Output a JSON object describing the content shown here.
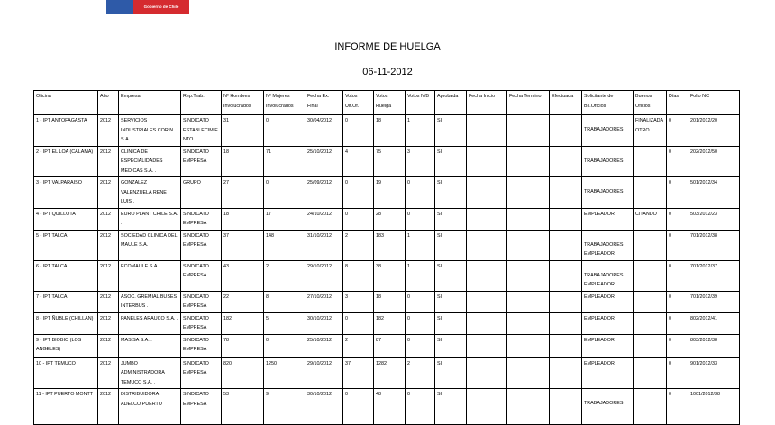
{
  "logo": {
    "text": "Gobierno de Chile"
  },
  "title": "INFORME DE HUELGA",
  "date": "06-11-2012",
  "columns": [
    "Oficina",
    "Año",
    "Empresa",
    "Rep.Trab.",
    "Nº Hombres Involucrados",
    "Nº Mujeres Involucrados",
    "Fecha Ex. Final",
    "Votos Ult.Of.",
    "Votos Huelga",
    "Votos N/B",
    "Aprobada",
    "Fecha Inicio",
    "Fecha Termino",
    "Efectuada",
    "Solicitante de Bs.Oficios",
    "Buenos Oficios",
    "Días",
    "Folio NC"
  ],
  "rows": [
    [
      "1 - IPT ANTOFAGASTA",
      "2012",
      "SERVICIOS INDUSTRIALES CORIN S.A. .",
      "SINDICATO ESTABLECIMIENTO",
      "31",
      "0",
      "30/04/2012",
      "0",
      "18",
      "1",
      "SI",
      "",
      "",
      "",
      "TRABAJADORES",
      "FINALIZADA OTRO",
      "0",
      "201/2012/20"
    ],
    [
      "2 - IPT EL LOA (CALAMA)",
      "2012",
      "CLINICA DE ESPECIALIDADES MEDICAS S.A. .",
      "SINDICATO EMPRESA",
      "18",
      "71",
      "25/10/2012",
      "4",
      "75",
      "3",
      "SI",
      "",
      "",
      "",
      "TRABAJADORES",
      "",
      "0",
      "202/2012/50"
    ],
    [
      "3 - IPT VALPARAISO",
      "2012",
      "GONZALEZ VALENZUELA RENE LUIS .",
      "GRUPO",
      "27",
      "0",
      "25/09/2012",
      "0",
      "19",
      "0",
      "SI",
      "",
      "",
      "",
      "TRABAJADORES",
      "",
      "0",
      "501/2012/34"
    ],
    [
      "4 - IPT QUILLOTA",
      "2012",
      "EURO PLANT CHILE S.A. .",
      "SINDICATO EMPRESA",
      "18",
      "17",
      "24/10/2012",
      "0",
      "28",
      "0",
      "SI",
      "",
      "",
      "",
      "EMPLEADOR",
      "CITANDO",
      "0",
      "503/2012/23"
    ],
    [
      "5 - IPT TALCA",
      "2012",
      "SOCIEDAD CLINICA DEL MAULE S.A. .",
      "SINDICATO EMPRESA",
      "37",
      "148",
      "31/10/2012",
      "2",
      "183",
      "1",
      "SI",
      "",
      "",
      "",
      "TRABAJADORES EMPLEADOR",
      "",
      "0",
      "701/2012/38"
    ],
    [
      "6 - IPT TALCA",
      "2012",
      "ECOMAULE S.A. .",
      "SINDICATO EMPRESA",
      "43",
      "2",
      "29/10/2012",
      "8",
      "38",
      "1",
      "SI",
      "",
      "",
      "",
      "TRABAJADORES EMPLEADOR",
      "",
      "0",
      "701/2012/37"
    ],
    [
      "7 - IPT TALCA",
      "2012",
      "ASOC. GREMIAL BUSES INTERBUS .",
      "SINDICATO EMPRESA",
      "22",
      "8",
      "27/10/2012",
      "3",
      "18",
      "0",
      "SI",
      "",
      "",
      "",
      "EMPLEADOR",
      "",
      "0",
      "701/2012/39"
    ],
    [
      "8 - IPT ÑUBLE (CHILLAN)",
      "2012",
      "PANELES ARAUCO S.A. .",
      "SINDICATO EMPRESA",
      "182",
      "5",
      "30/10/2012",
      "0",
      "182",
      "0",
      "SI",
      "",
      "",
      "",
      "EMPLEADOR",
      "",
      "0",
      "802/2012/41"
    ],
    [
      "9 - IPT BIOBIO (LOS ANGELES)",
      "2012",
      "MASISA S.A. .",
      "SINDICATO EMPRESA",
      "78",
      "0",
      "25/10/2012",
      "2",
      "87",
      "0",
      "SI",
      "",
      "",
      "",
      "EMPLEADOR",
      "",
      "0",
      "803/2012/38"
    ],
    [
      "10 - IPT TEMUCO",
      "2012",
      "JUMBO ADMINISTRADORA TEMUCO S.A. .",
      "SINDICATO EMPRESA",
      "820",
      "1250",
      "29/10/2012",
      "37",
      "1282",
      "2",
      "SI",
      "",
      "",
      "",
      "EMPLEADOR",
      "",
      "0",
      "901/2012/33"
    ],
    [
      "11 - IPT PUERTO MONTT",
      "2012",
      "DISTRIBUIDORA ADELCO PUERTO",
      "SINDICATO EMPRESA",
      "53",
      "9",
      "30/10/2012",
      "0",
      "48",
      "0",
      "SI",
      "",
      "",
      "",
      "TRABAJADORES",
      "",
      "0",
      "1001/2012/38"
    ]
  ]
}
